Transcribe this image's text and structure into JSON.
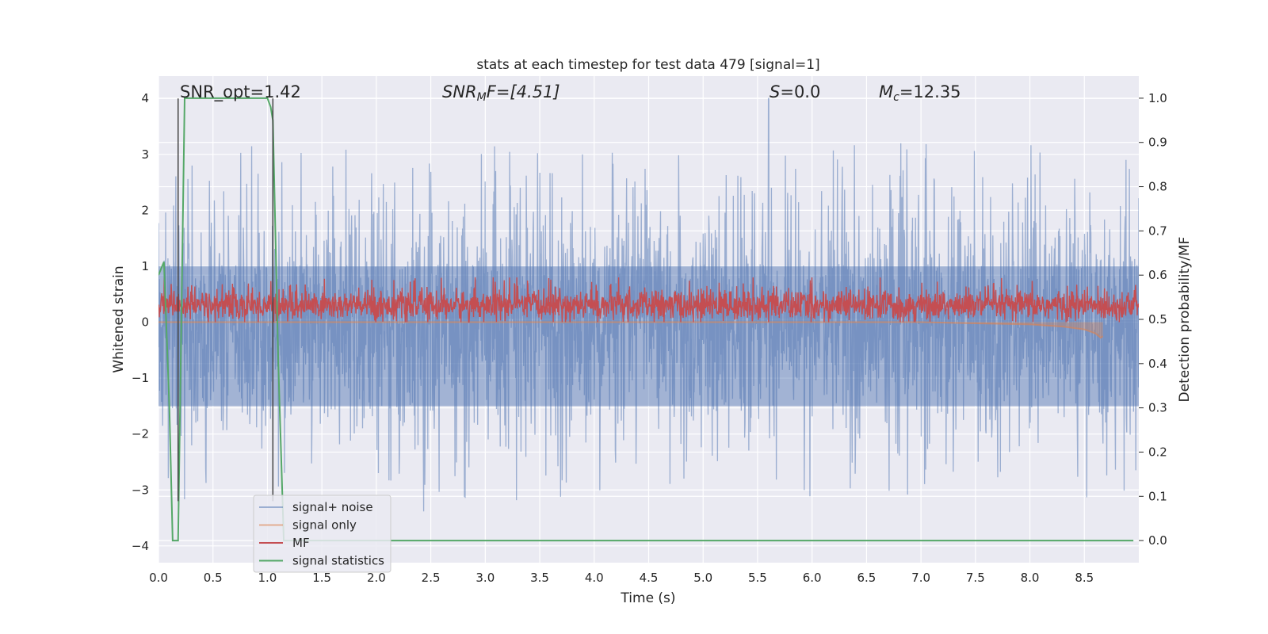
{
  "chart_data": {
    "type": "line",
    "title": "stats at each timestep for test data 479 [signal=1]",
    "xlabel": "Time (s)",
    "ylabel": "Whitened strain",
    "ylabel_right": "Detection probability/MF",
    "xlim": [
      0.0,
      9.0
    ],
    "ylim": [
      -4.3,
      4.4
    ],
    "ylim_right": [
      -0.05,
      1.05
    ],
    "grid": true,
    "legend_position": "lower-left",
    "x_ticks": [
      "0.0",
      "0.5",
      "1.0",
      "1.5",
      "2.0",
      "2.5",
      "3.0",
      "3.5",
      "4.0",
      "4.5",
      "5.0",
      "5.5",
      "6.0",
      "6.5",
      "7.0",
      "7.5",
      "8.0",
      "8.5"
    ],
    "y_ticks_left": [
      "4",
      "3",
      "2",
      "1",
      "0",
      "−1",
      "−2",
      "−3",
      "−4"
    ],
    "y_ticks_right": [
      "1.0",
      "0.9",
      "0.8",
      "0.7",
      "0.6",
      "0.5",
      "0.4",
      "0.3",
      "0.2",
      "0.1",
      "0.0"
    ],
    "annotations": {
      "snr_opt": "SNR_opt=1.42",
      "snr_mf_sym": "SNR",
      "snr_mf_sub": "M",
      "snr_mf_rest": "F=[4.51]",
      "s_sym": "S",
      "s_rest": "=0.0",
      "mc_sym": "M",
      "mc_sub": "c",
      "mc_rest": "=12.35"
    },
    "markers": {
      "vertical_lines_x": [
        0.18,
        1.05
      ],
      "spike_x": 5.6,
      "spike_y": 4.0
    },
    "series": [
      {
        "name": "signal+ noise",
        "color": "#4c72b0",
        "alpha": 0.5,
        "y_range": [
          -3.8,
          4.0
        ],
        "axis": "left"
      },
      {
        "name": "signal only",
        "color": "#dd8452",
        "alpha": 0.6,
        "axis": "left",
        "x": [
          0.0,
          7.0,
          7.5,
          8.0,
          8.3,
          8.5,
          8.6,
          8.65,
          8.67
        ],
        "y": [
          0.0,
          0.0,
          -0.02,
          -0.04,
          -0.08,
          -0.13,
          -0.2,
          -0.28,
          -0.25
        ]
      },
      {
        "name": "MF",
        "color": "#c44e52",
        "axis": "left",
        "y_range": [
          0.0,
          0.8
        ]
      },
      {
        "name": "signal statistics",
        "color": "#55a868",
        "axis": "right",
        "x": [
          0.0,
          0.05,
          0.1,
          0.13,
          0.18,
          0.24,
          0.3,
          0.5,
          1.0,
          1.03,
          1.05,
          1.1,
          1.15,
          1.2,
          2.0,
          4.0,
          6.0,
          8.0,
          8.95
        ],
        "y": [
          0.6,
          0.63,
          0.3,
          0.0,
          0.0,
          1.0,
          1.0,
          1.0,
          1.0,
          0.98,
          0.95,
          0.4,
          0.0,
          0.0,
          0.0,
          0.0,
          0.0,
          0.0,
          0.0
        ]
      }
    ]
  }
}
